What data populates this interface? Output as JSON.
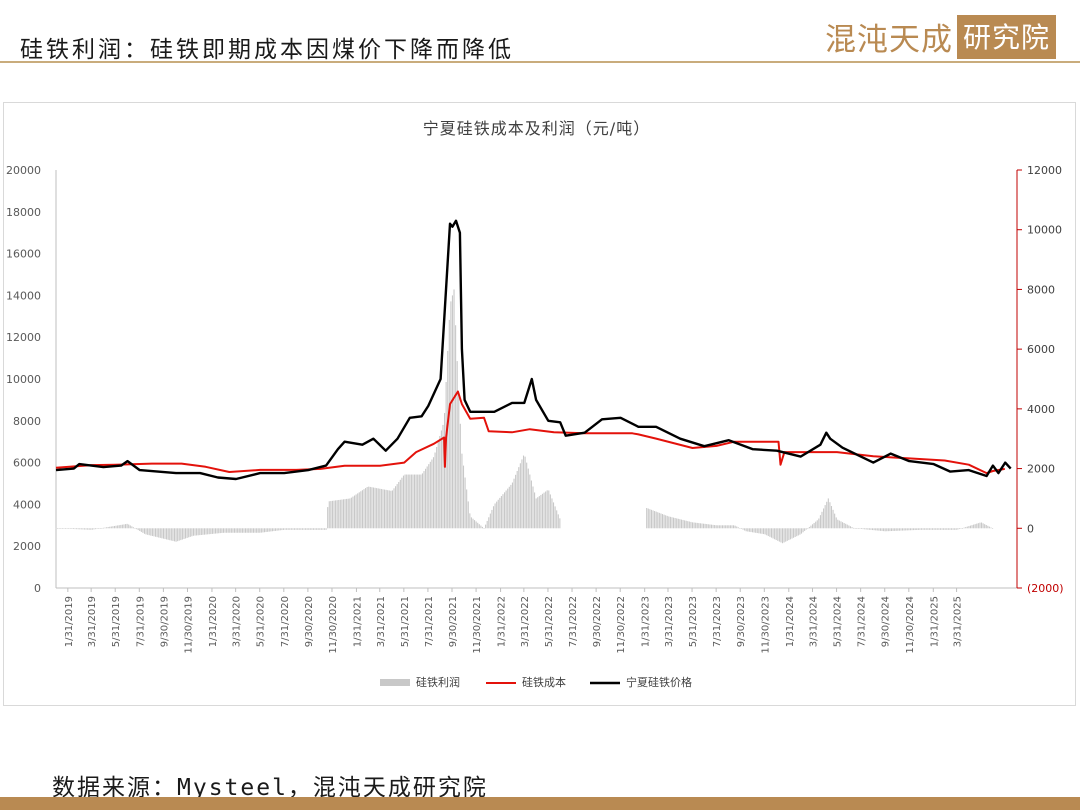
{
  "header": {
    "title": "硅铁利润：硅铁即期成本因煤价下降而降低",
    "logo_text": "混沌天成",
    "logo_box_text": "研究院"
  },
  "footer": {
    "source": "数据来源：Mysteel，混沌天成研究院"
  },
  "colors": {
    "profit": "#c8c8c8",
    "cost": "#e3120b",
    "price": "#000000",
    "accent": "#b98a52"
  },
  "chart_data": {
    "type": "bar+line",
    "title": "宁夏硅铁成本及利润（元/吨）",
    "x_type": "date",
    "x_range": [
      "2019-01-01",
      "2025-08-31"
    ],
    "tick_labels": [
      "1/31/2019",
      "3/31/2019",
      "5/31/2019",
      "7/31/2019",
      "9/30/2019",
      "11/30/2019",
      "1/31/2020",
      "3/31/2020",
      "5/31/2020",
      "7/31/2020",
      "9/30/2020",
      "11/30/2020",
      "1/31/2021",
      "3/31/2021",
      "5/31/2021",
      "7/31/2021",
      "9/30/2021",
      "11/30/2021",
      "1/31/2022",
      "3/31/2022",
      "5/31/2022",
      "7/31/2022",
      "9/30/2022",
      "11/30/2022",
      "1/31/2023",
      "3/31/2023",
      "5/31/2023",
      "7/31/2023",
      "9/30/2023",
      "11/30/2023",
      "1/31/2024",
      "3/31/2024",
      "5/31/2024",
      "7/31/2024",
      "9/30/2024",
      "11/30/2024",
      "1/31/2025",
      "3/31/2025"
    ],
    "left_axis": {
      "min": 0,
      "max": 20000,
      "ticks": [
        "0",
        "2000",
        "4000",
        "6000",
        "8000",
        "10000",
        "12000",
        "14000",
        "16000",
        "18000",
        "20000"
      ]
    },
    "right_axis": {
      "min": -2000,
      "max": 12000,
      "ticks": [
        "(2000)",
        "0",
        "2000",
        "4000",
        "6000",
        "8000",
        "10000",
        "12000"
      ],
      "color": "#c00000"
    },
    "legend": {
      "position": "bottom",
      "items": [
        "硅铁利润",
        "硅铁成本",
        "宁夏硅铁价格"
      ]
    },
    "series": [
      {
        "name": "硅铁利润",
        "type": "bar",
        "axis": "right",
        "color": "#c8c8c8",
        "points": [
          [
            "2019-01-01",
            0
          ],
          [
            "2019-04-01",
            -50
          ],
          [
            "2019-07-01",
            150
          ],
          [
            "2019-08-15",
            -200
          ],
          [
            "2019-11-01",
            -450
          ],
          [
            "2019-12-15",
            -250
          ],
          [
            "2020-03-01",
            -150
          ],
          [
            "2020-06-01",
            -150
          ],
          [
            "2020-08-01",
            -50
          ],
          [
            "2020-11-15",
            -50
          ],
          [
            "2020-11-20",
            900
          ],
          [
            "2021-01-15",
            1000
          ],
          [
            "2021-03-01",
            1400
          ],
          [
            "2021-05-01",
            1250
          ],
          [
            "2021-06-01",
            1800
          ],
          [
            "2021-07-15",
            1800
          ],
          [
            "2021-08-15",
            2400
          ],
          [
            "2021-09-10",
            3600
          ],
          [
            "2021-09-25",
            7500
          ],
          [
            "2021-10-05",
            8000
          ],
          [
            "2021-10-15",
            5000
          ],
          [
            "2021-10-25",
            2500
          ],
          [
            "2021-11-15",
            400
          ],
          [
            "2021-12-20",
            0
          ],
          [
            "2022-01-15",
            800
          ],
          [
            "2022-03-01",
            1500
          ],
          [
            "2022-04-01",
            2500
          ],
          [
            "2022-05-01",
            1000
          ],
          [
            "2022-06-01",
            1300
          ],
          [
            "2022-07-01",
            300
          ],
          [
            "2022-07-05",
            null
          ],
          [
            "2023-01-31",
            null
          ],
          [
            "2023-02-01",
            700
          ],
          [
            "2023-04-01",
            400
          ],
          [
            "2023-06-01",
            200
          ],
          [
            "2023-08-01",
            100
          ],
          [
            "2023-09-15",
            100
          ],
          [
            "2023-10-15",
            -100
          ],
          [
            "2023-12-01",
            -200
          ],
          [
            "2024-01-15",
            -500
          ],
          [
            "2024-03-01",
            -200
          ],
          [
            "2024-04-15",
            300
          ],
          [
            "2024-05-10",
            1000
          ],
          [
            "2024-06-01",
            300
          ],
          [
            "2024-07-15",
            0
          ],
          [
            "2024-10-01",
            -100
          ],
          [
            "2025-01-01",
            -50
          ],
          [
            "2025-04-01",
            -50
          ],
          [
            "2025-06-01",
            200
          ],
          [
            "2025-06-30",
            0
          ]
        ]
      },
      {
        "name": "硅铁成本",
        "type": "line",
        "axis": "left",
        "color": "#e3120b",
        "points": [
          [
            "2019-01-01",
            5750
          ],
          [
            "2019-04-01",
            5880
          ],
          [
            "2019-06-01",
            5900
          ],
          [
            "2019-09-01",
            5950
          ],
          [
            "2019-11-15",
            5950
          ],
          [
            "2020-01-15",
            5800
          ],
          [
            "2020-03-15",
            5550
          ],
          [
            "2020-06-01",
            5650
          ],
          [
            "2020-09-01",
            5650
          ],
          [
            "2020-11-01",
            5700
          ],
          [
            "2021-01-01",
            5850
          ],
          [
            "2021-04-01",
            5850
          ],
          [
            "2021-06-01",
            6000
          ],
          [
            "2021-07-01",
            6500
          ],
          [
            "2021-08-15",
            6900
          ],
          [
            "2021-09-10",
            7200
          ],
          [
            "2021-09-12",
            5800
          ],
          [
            "2021-09-15",
            7200
          ],
          [
            "2021-09-25",
            8800
          ],
          [
            "2021-10-15",
            9400
          ],
          [
            "2021-10-25",
            8800
          ],
          [
            "2021-11-15",
            8100
          ],
          [
            "2021-12-20",
            8150
          ],
          [
            "2022-01-01",
            7500
          ],
          [
            "2022-03-01",
            7450
          ],
          [
            "2022-04-15",
            7600
          ],
          [
            "2022-06-15",
            7450
          ],
          [
            "2022-09-01",
            7400
          ],
          [
            "2022-12-31",
            7400
          ],
          [
            "2023-01-15",
            7350
          ],
          [
            "2023-03-01",
            7150
          ],
          [
            "2023-06-01",
            6700
          ],
          [
            "2023-08-01",
            6800
          ],
          [
            "2023-09-15",
            7000
          ],
          [
            "2023-12-31",
            7000
          ],
          [
            "2024-01-05",
            7000
          ],
          [
            "2024-01-10",
            5900
          ],
          [
            "2024-01-20",
            6500
          ],
          [
            "2024-03-01",
            6500
          ],
          [
            "2024-06-01",
            6500
          ],
          [
            "2024-09-01",
            6300
          ],
          [
            "2024-12-01",
            6200
          ],
          [
            "2025-03-01",
            6100
          ],
          [
            "2025-05-01",
            5900
          ],
          [
            "2025-06-15",
            5500
          ],
          [
            "2025-07-01",
            5600
          ],
          [
            "2025-07-31",
            5700
          ]
        ]
      },
      {
        "name": "宁夏硅铁价格",
        "type": "line",
        "axis": "right",
        "color": "#000000",
        "points": [
          [
            "2019-01-01",
            1950
          ],
          [
            "2019-02-15",
            2000
          ],
          [
            "2019-03-01",
            2150
          ],
          [
            "2019-05-01",
            2050
          ],
          [
            "2019-06-15",
            2100
          ],
          [
            "2019-07-01",
            2250
          ],
          [
            "2019-08-01",
            1950
          ],
          [
            "2019-11-01",
            1850
          ],
          [
            "2020-01-01",
            1850
          ],
          [
            "2020-02-15",
            1700
          ],
          [
            "2020-04-01",
            1650
          ],
          [
            "2020-06-01",
            1850
          ],
          [
            "2020-08-01",
            1850
          ],
          [
            "2020-10-01",
            1950
          ],
          [
            "2020-11-15",
            2100
          ],
          [
            "2020-12-15",
            2650
          ],
          [
            "2021-01-01",
            2900
          ],
          [
            "2021-02-15",
            2800
          ],
          [
            "2021-03-15",
            3000
          ],
          [
            "2021-04-15",
            2600
          ],
          [
            "2021-05-15",
            3000
          ],
          [
            "2021-06-15",
            3700
          ],
          [
            "2021-07-15",
            3750
          ],
          [
            "2021-08-01",
            4100
          ],
          [
            "2021-09-01",
            5000
          ],
          [
            "2021-09-25",
            10200
          ],
          [
            "2021-10-01",
            10100
          ],
          [
            "2021-10-10",
            10300
          ],
          [
            "2021-10-20",
            9900
          ],
          [
            "2021-10-25",
            6000
          ],
          [
            "2021-11-01",
            4300
          ],
          [
            "2021-11-15",
            3900
          ],
          [
            "2022-01-15",
            3900
          ],
          [
            "2022-03-01",
            4200
          ],
          [
            "2022-04-01",
            4200
          ],
          [
            "2022-04-20",
            5000
          ],
          [
            "2022-05-01",
            4300
          ],
          [
            "2022-06-01",
            3600
          ],
          [
            "2022-07-01",
            3550
          ],
          [
            "2022-07-15",
            3100
          ],
          [
            "2022-09-01",
            3200
          ],
          [
            "2022-10-15",
            3650
          ],
          [
            "2022-12-01",
            3700
          ],
          [
            "2023-01-15",
            3400
          ],
          [
            "2023-03-01",
            3400
          ],
          [
            "2023-05-01",
            3000
          ],
          [
            "2023-07-01",
            2750
          ],
          [
            "2023-09-01",
            2950
          ],
          [
            "2023-11-01",
            2650
          ],
          [
            "2024-01-01",
            2600
          ],
          [
            "2024-03-01",
            2400
          ],
          [
            "2024-04-20",
            2800
          ],
          [
            "2024-05-05",
            3200
          ],
          [
            "2024-05-15",
            3000
          ],
          [
            "2024-06-15",
            2700
          ],
          [
            "2024-09-01",
            2200
          ],
          [
            "2024-10-15",
            2500
          ],
          [
            "2024-12-01",
            2250
          ],
          [
            "2025-02-01",
            2150
          ],
          [
            "2025-03-15",
            1900
          ],
          [
            "2025-05-01",
            1950
          ],
          [
            "2025-06-15",
            1750
          ],
          [
            "2025-07-01",
            2100
          ],
          [
            "2025-07-15",
            1850
          ],
          [
            "2025-08-01",
            2200
          ],
          [
            "2025-08-15",
            2000
          ]
        ]
      }
    ]
  }
}
